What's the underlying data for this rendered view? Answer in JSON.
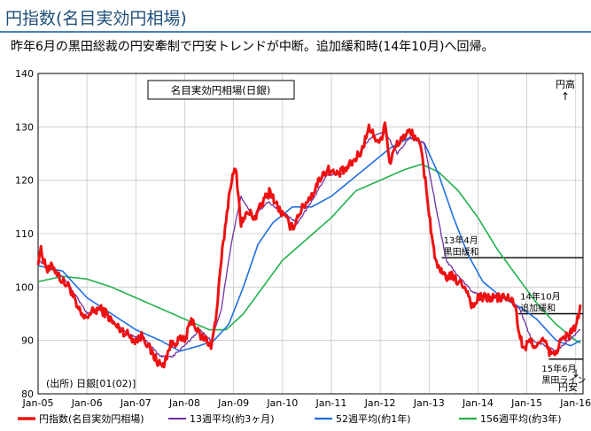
{
  "slide_title": "円指数(名目実効円相場)",
  "subtitle": "昨年6月の黒田総裁の円安牽制で円安トレンドが中断。追加緩和時(14年10月)へ回帰。",
  "colors": {
    "title": "#1f4e79",
    "rule": "#4a7ebb"
  },
  "chart_data": {
    "type": "line",
    "title": "名目実効円相場(日銀)",
    "source": "(出所) 日銀[01(02)]",
    "ylim": [
      80,
      140
    ],
    "yticks": [
      80,
      90,
      100,
      110,
      120,
      130,
      140
    ],
    "xlim": [
      2005.0,
      2016.15
    ],
    "xticks": [
      {
        "label": "Jan-05",
        "t": 2005
      },
      {
        "label": "Jan-06",
        "t": 2006
      },
      {
        "label": "Jan-07",
        "t": 2007
      },
      {
        "label": "Jan-08",
        "t": 2008
      },
      {
        "label": "Jan-09",
        "t": 2009
      },
      {
        "label": "Jan-10",
        "t": 2010
      },
      {
        "label": "Jan-11",
        "t": 2011
      },
      {
        "label": "Jan-12",
        "t": 2012
      },
      {
        "label": "Jan-13",
        "t": 2013
      },
      {
        "label": "Jan-14",
        "t": 2014
      },
      {
        "label": "Jan-15",
        "t": 2015
      },
      {
        "label": "Jan-16",
        "t": 2016
      }
    ],
    "series": [
      {
        "name": "円指数(名目実効円相場)",
        "color": "#ee1111",
        "width": 3,
        "anchors": [
          [
            2005.0,
            105
          ],
          [
            2005.05,
            107
          ],
          [
            2005.2,
            103
          ],
          [
            2005.3,
            104
          ],
          [
            2005.5,
            101
          ],
          [
            2005.65,
            100
          ],
          [
            2005.8,
            96
          ],
          [
            2005.95,
            94
          ],
          [
            2006.05,
            95
          ],
          [
            2006.25,
            96
          ],
          [
            2006.4,
            95
          ],
          [
            2006.55,
            93
          ],
          [
            2006.7,
            92
          ],
          [
            2006.85,
            91
          ],
          [
            2007.0,
            90
          ],
          [
            2007.15,
            91
          ],
          [
            2007.3,
            88
          ],
          [
            2007.45,
            86
          ],
          [
            2007.55,
            85
          ],
          [
            2007.7,
            89
          ],
          [
            2007.85,
            90
          ],
          [
            2008.0,
            90
          ],
          [
            2008.15,
            94
          ],
          [
            2008.3,
            91
          ],
          [
            2008.45,
            90
          ],
          [
            2008.55,
            89
          ],
          [
            2008.65,
            95
          ],
          [
            2008.75,
            105
          ],
          [
            2008.85,
            113
          ],
          [
            2008.95,
            120
          ],
          [
            2009.05,
            122
          ],
          [
            2009.15,
            112
          ],
          [
            2009.3,
            114
          ],
          [
            2009.45,
            113
          ],
          [
            2009.6,
            116
          ],
          [
            2009.75,
            118
          ],
          [
            2009.9,
            115
          ],
          [
            2010.05,
            113
          ],
          [
            2010.2,
            111
          ],
          [
            2010.35,
            114
          ],
          [
            2010.5,
            116
          ],
          [
            2010.65,
            118
          ],
          [
            2010.8,
            121
          ],
          [
            2010.95,
            122
          ],
          [
            2011.1,
            121
          ],
          [
            2011.3,
            122
          ],
          [
            2011.5,
            124
          ],
          [
            2011.65,
            126
          ],
          [
            2011.75,
            130
          ],
          [
            2011.9,
            128
          ],
          [
            2012.0,
            127
          ],
          [
            2012.1,
            131
          ],
          [
            2012.2,
            123
          ],
          [
            2012.3,
            126
          ],
          [
            2012.45,
            128
          ],
          [
            2012.6,
            129
          ],
          [
            2012.75,
            128
          ],
          [
            2012.85,
            125
          ],
          [
            2012.95,
            118
          ],
          [
            2013.05,
            110
          ],
          [
            2013.15,
            104
          ],
          [
            2013.3,
            102
          ],
          [
            2013.45,
            102
          ],
          [
            2013.6,
            101
          ],
          [
            2013.75,
            100
          ],
          [
            2013.9,
            96
          ],
          [
            2014.0,
            98
          ],
          [
            2014.2,
            98
          ],
          [
            2014.4,
            98
          ],
          [
            2014.6,
            98
          ],
          [
            2014.75,
            97
          ],
          [
            2014.85,
            91
          ],
          [
            2014.95,
            88
          ],
          [
            2015.05,
            90
          ],
          [
            2015.2,
            89
          ],
          [
            2015.35,
            90
          ],
          [
            2015.45,
            88
          ],
          [
            2015.55,
            87
          ],
          [
            2015.7,
            90
          ],
          [
            2015.85,
            91
          ],
          [
            2015.95,
            92
          ],
          [
            2016.05,
            94
          ],
          [
            2016.1,
            97
          ]
        ],
        "noise": 0.9
      },
      {
        "name": "13週平均(約3ヶ月)",
        "color": "#7030a0",
        "width": 1.3,
        "anchors": [
          [
            2005.0,
            105
          ],
          [
            2005.2,
            104
          ],
          [
            2005.5,
            102
          ],
          [
            2005.8,
            98
          ],
          [
            2006.0,
            95
          ],
          [
            2006.3,
            96
          ],
          [
            2006.6,
            93
          ],
          [
            2006.9,
            91
          ],
          [
            2007.2,
            90
          ],
          [
            2007.5,
            87
          ],
          [
            2007.75,
            87
          ],
          [
            2008.0,
            89
          ],
          [
            2008.3,
            92
          ],
          [
            2008.55,
            90
          ],
          [
            2008.75,
            96
          ],
          [
            2008.95,
            108
          ],
          [
            2009.15,
            117
          ],
          [
            2009.4,
            113
          ],
          [
            2009.7,
            116
          ],
          [
            2010.0,
            114
          ],
          [
            2010.3,
            112
          ],
          [
            2010.6,
            116
          ],
          [
            2010.9,
            121
          ],
          [
            2011.2,
            121
          ],
          [
            2011.5,
            124
          ],
          [
            2011.8,
            128
          ],
          [
            2012.1,
            129
          ],
          [
            2012.35,
            125
          ],
          [
            2012.6,
            128
          ],
          [
            2012.9,
            127
          ],
          [
            2013.1,
            117
          ],
          [
            2013.35,
            105
          ],
          [
            2013.6,
            102
          ],
          [
            2013.9,
            99
          ],
          [
            2014.2,
            98
          ],
          [
            2014.6,
            98
          ],
          [
            2014.85,
            96
          ],
          [
            2015.1,
            90
          ],
          [
            2015.4,
            89
          ],
          [
            2015.6,
            88
          ],
          [
            2015.85,
            90
          ],
          [
            2016.1,
            92
          ]
        ],
        "noise": 0.2
      },
      {
        "name": "52週平均(約1年)",
        "color": "#1f6fe0",
        "width": 1.6,
        "anchors": [
          [
            2005.0,
            104
          ],
          [
            2005.5,
            103
          ],
          [
            2006.0,
            98
          ],
          [
            2006.5,
            95
          ],
          [
            2007.0,
            92
          ],
          [
            2007.5,
            90
          ],
          [
            2007.9,
            88
          ],
          [
            2008.3,
            89
          ],
          [
            2008.6,
            90
          ],
          [
            2008.9,
            93
          ],
          [
            2009.2,
            100
          ],
          [
            2009.5,
            108
          ],
          [
            2009.8,
            112
          ],
          [
            2010.2,
            115
          ],
          [
            2010.6,
            115
          ],
          [
            2011.0,
            117
          ],
          [
            2011.4,
            120
          ],
          [
            2011.8,
            123
          ],
          [
            2012.2,
            126
          ],
          [
            2012.6,
            128
          ],
          [
            2012.9,
            127
          ],
          [
            2013.2,
            121
          ],
          [
            2013.5,
            113
          ],
          [
            2013.8,
            106
          ],
          [
            2014.1,
            101
          ],
          [
            2014.5,
            98
          ],
          [
            2014.9,
            96
          ],
          [
            2015.2,
            94
          ],
          [
            2015.6,
            90
          ],
          [
            2015.9,
            89
          ],
          [
            2016.1,
            90
          ]
        ],
        "noise": 0.0
      },
      {
        "name": "156週平均(約3年)",
        "color": "#22b14c",
        "width": 1.6,
        "anchors": [
          [
            2005.0,
            101
          ],
          [
            2005.5,
            102
          ],
          [
            2006.0,
            101.5
          ],
          [
            2006.5,
            100
          ],
          [
            2007.0,
            98
          ],
          [
            2007.5,
            96
          ],
          [
            2008.0,
            94
          ],
          [
            2008.5,
            92
          ],
          [
            2008.85,
            92
          ],
          [
            2009.2,
            95
          ],
          [
            2009.6,
            100
          ],
          [
            2010.0,
            105
          ],
          [
            2010.5,
            109
          ],
          [
            2011.0,
            113
          ],
          [
            2011.5,
            118
          ],
          [
            2012.0,
            120
          ],
          [
            2012.5,
            122
          ],
          [
            2012.85,
            123
          ],
          [
            2013.2,
            121.5
          ],
          [
            2013.6,
            118
          ],
          [
            2014.0,
            113
          ],
          [
            2014.4,
            107
          ],
          [
            2014.8,
            102
          ],
          [
            2015.2,
            97
          ],
          [
            2015.6,
            93
          ],
          [
            2016.0,
            90
          ],
          [
            2016.1,
            89.5
          ]
        ],
        "noise": 0.0
      }
    ],
    "annotations": [
      {
        "lines": [
          "13年4月",
          "黒田緩和"
        ],
        "t": 2013.26,
        "value": 105.5
      },
      {
        "lines": [
          "14年10月",
          "追加緩和"
        ],
        "t": 2014.83,
        "value": 95
      },
      {
        "lines": [
          "15年6月",
          "黒田ライン"
        ],
        "t": 2015.45,
        "value": 86.5
      }
    ],
    "corner_labels": {
      "top": "円高",
      "top_arrow": "↑",
      "bottom": "円安",
      "bottom_arrow": "↓"
    }
  }
}
